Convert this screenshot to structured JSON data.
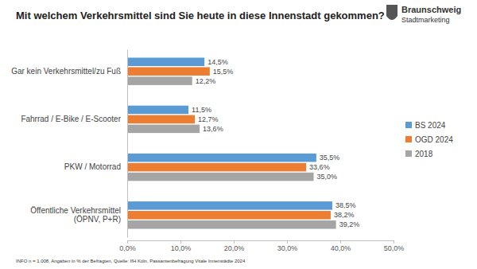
{
  "chart_data": {
    "type": "bar",
    "orientation": "horizontal",
    "title": "Mit welchem Verkehrsmittel sind Sie heute in diese Innenstadt gekommen?",
    "categories": [
      "Gar kein Verkehrsmittel/zu Fuß",
      "Fahrrad / E-Bike / E-Scooter",
      "PKW / Motorrad",
      "Öffentliche Verkehrsmittel (ÖPNV, P+R)"
    ],
    "series": [
      {
        "name": "BS 2024",
        "color": "#5b9bd5",
        "values": [
          14.5,
          11.5,
          35.5,
          38.5
        ],
        "value_labels": [
          "14,5%",
          "11,5%",
          "35,5%",
          "38,5%"
        ]
      },
      {
        "name": "OGD 2024",
        "color": "#ed7d31",
        "values": [
          15.5,
          12.7,
          33.6,
          38.2
        ],
        "value_labels": [
          "15,5%",
          "12,7%",
          "33,6%",
          "38,2%"
        ]
      },
      {
        "name": "2018",
        "color": "#a5a5a5",
        "values": [
          12.2,
          13.6,
          35.0,
          39.2
        ],
        "value_labels": [
          "12,2%",
          "13,6%",
          "35,0%",
          "39,2%"
        ]
      }
    ],
    "xlim": [
      0,
      50
    ],
    "xticks": [
      {
        "value": 0,
        "label": "0,0%"
      },
      {
        "value": 10,
        "label": "10,0%"
      },
      {
        "value": 20,
        "label": "20,0%"
      },
      {
        "value": 30,
        "label": "30,0%"
      },
      {
        "value": 40,
        "label": "40,0%"
      },
      {
        "value": 50,
        "label": "50,0%"
      }
    ],
    "grid": false,
    "data_labels": true,
    "legend": "right",
    "note": "INFO n = 1.008, Angaben in % der Befragten, Quelle: IfH Köln, Passantenbefragung Vitale Innenstädte 2024",
    "logo": {
      "name": "Braunschweig",
      "sub": "Stadtmarketing"
    }
  }
}
